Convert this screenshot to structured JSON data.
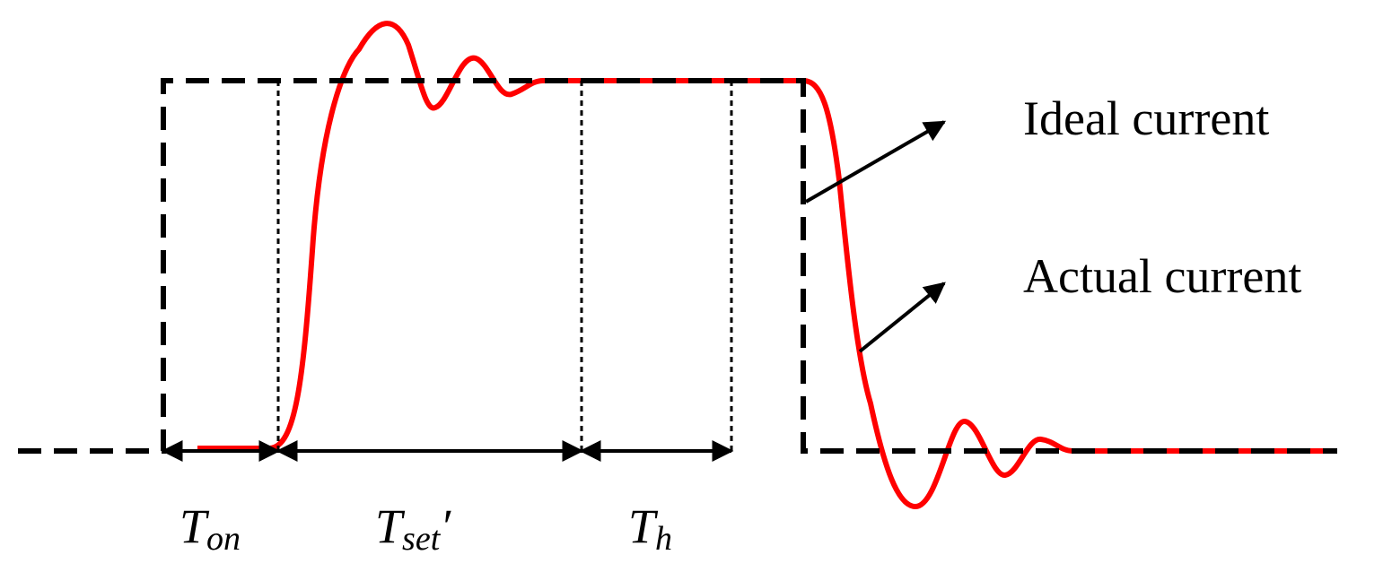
{
  "legend": {
    "ideal": "Ideal current",
    "actual": "Actual current"
  },
  "intervals": [
    {
      "main": "T",
      "sub": "on"
    },
    {
      "main": "T",
      "sub": "set",
      "suffix": "′"
    },
    {
      "main": "T",
      "sub": "h"
    }
  ]
}
